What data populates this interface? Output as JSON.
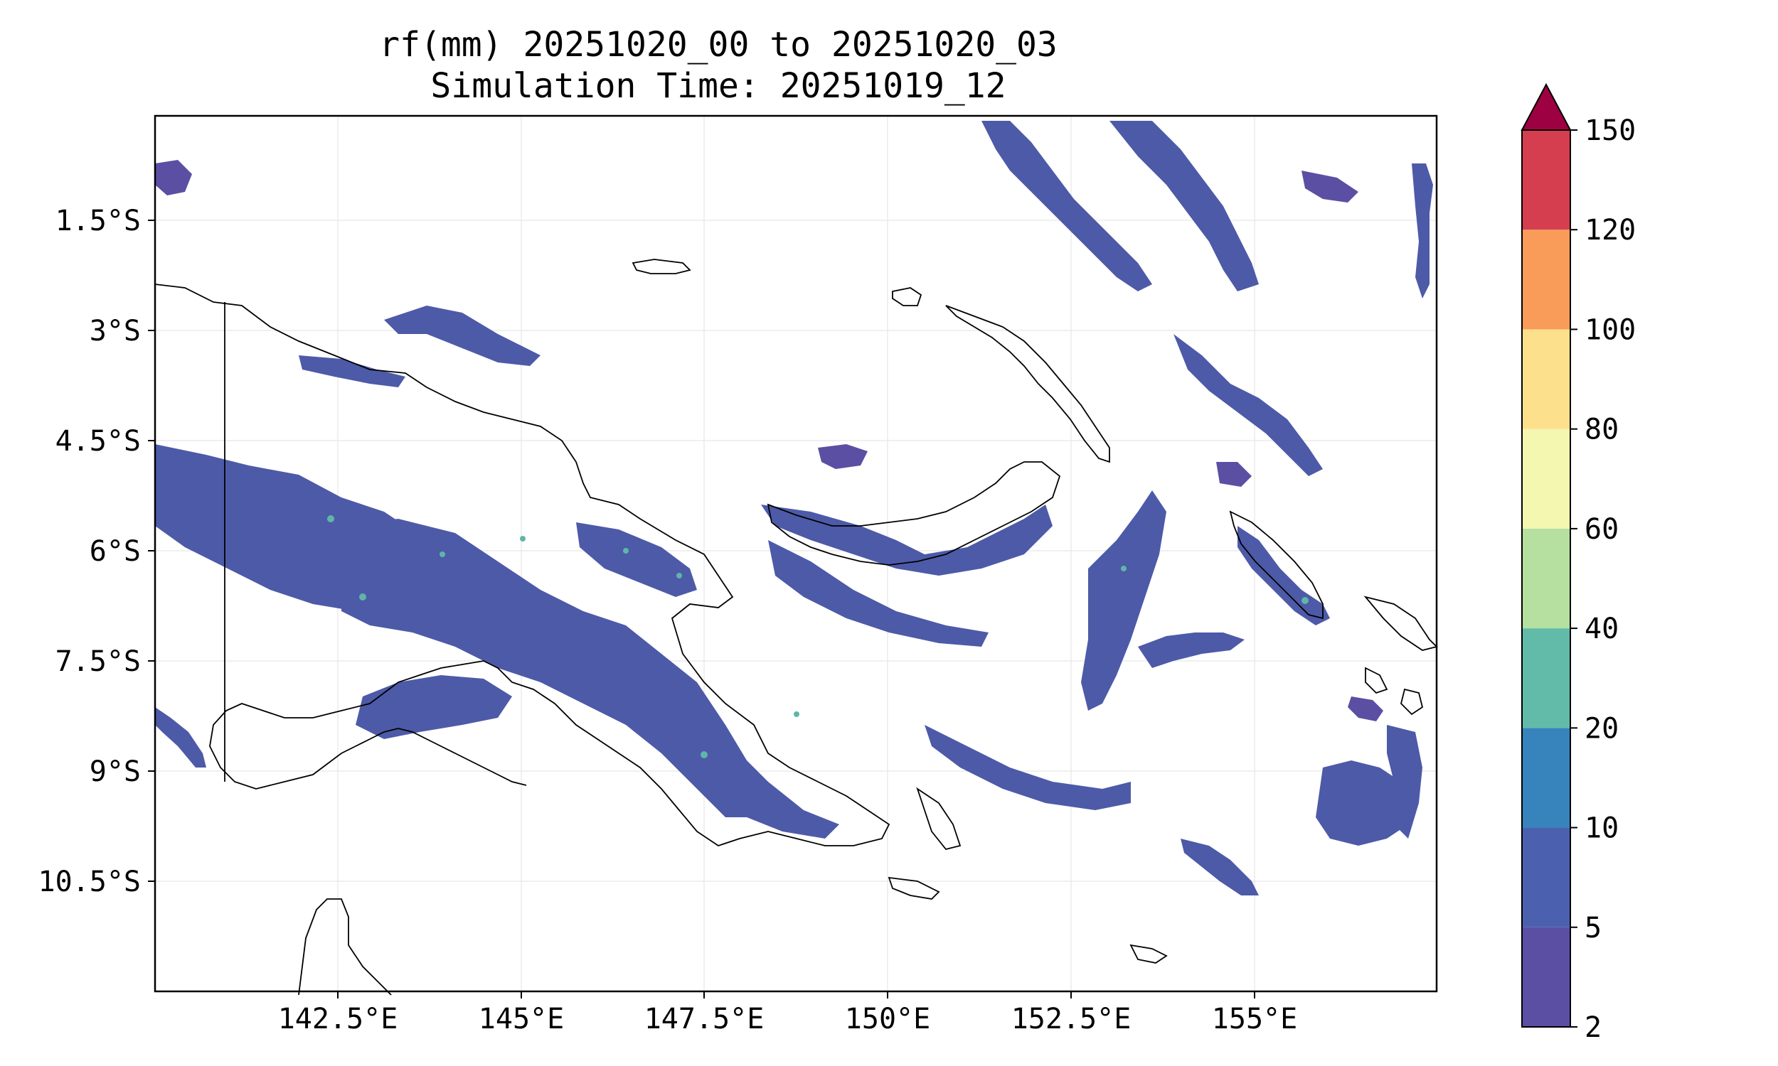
{
  "title": {
    "line1": "rf(mm) 20251020_00 to 20251020_03",
    "line2": "Simulation Time: 20251019_12"
  },
  "map": {
    "lat_labels": [
      "1.5°S",
      "3°S",
      "4.5°S",
      "6°S",
      "7.5°S",
      "9°S",
      "10.5°S"
    ],
    "lon_labels": [
      "142.5°E",
      "145°E",
      "147.5°E",
      "150°E",
      "152.5°E",
      "155°E"
    ],
    "grid": true,
    "coastline_color": "#000000",
    "rain_color_main": "#4d5aa8"
  },
  "colorbar": {
    "tick_labels": [
      "2",
      "5",
      "10",
      "20",
      "40",
      "60",
      "80",
      "100",
      "120",
      "150"
    ],
    "colors": [
      "#5b4fa3",
      "#4b61b0",
      "#3783bc",
      "#62bba9",
      "#b5e0a0",
      "#f3f7b0",
      "#fde08c",
      "#f99c59",
      "#d53e4f"
    ],
    "extend_color": "#9e0142",
    "extend": "max"
  }
}
